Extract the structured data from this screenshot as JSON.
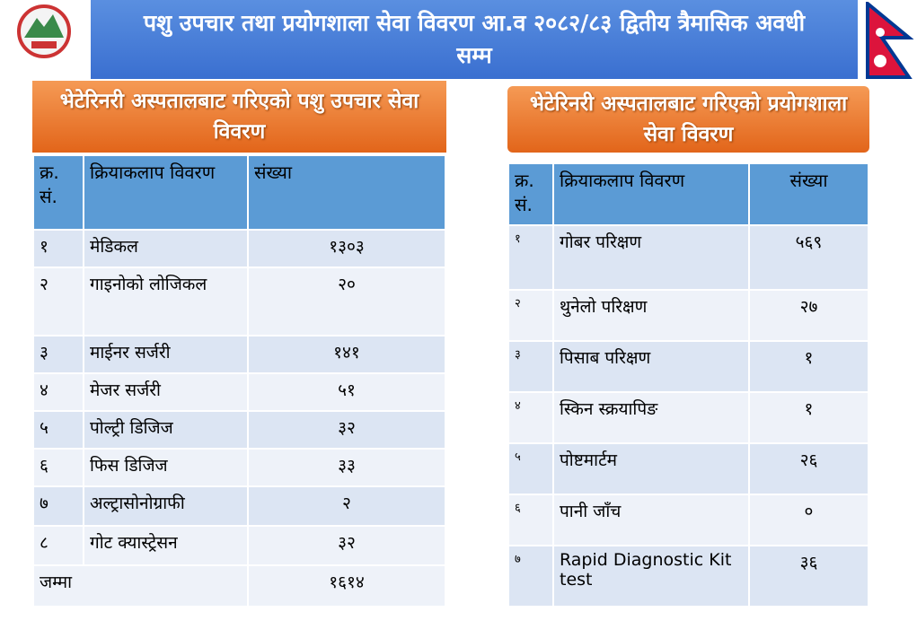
{
  "header": {
    "title": "पशु उपचार तथा प्रयोगशाला सेवा विवरण आ.व २०८२/८३ द्वितीय त्रैमासिक अवधी सम्म"
  },
  "left": {
    "title": "भेटेरिनरी अस्पतालबाट गरिएको पशु उपचार सेवा विवरण",
    "table": {
      "headers": [
        "क्र. सं.",
        "क्रियाकलाप विवरण",
        "संख्या"
      ],
      "rows": [
        [
          "१",
          "मेडिकल",
          "१३०३"
        ],
        [
          "२",
          "गाइनोको लोजिकल",
          "२०"
        ],
        [
          "३",
          "माईनर सर्जरी",
          "१४१"
        ],
        [
          "४",
          "मेजर सर्जरी",
          "५१"
        ],
        [
          "५",
          "पोल्ट्री डिजिज",
          "३२"
        ],
        [
          "६",
          "फिस डिजिज",
          "३३"
        ],
        [
          "७",
          "अल्ट्रासोनोग्राफी",
          "२"
        ],
        [
          "८",
          "गोट क्यास्ट्रेसन",
          "३२"
        ]
      ],
      "total": [
        "जम्मा",
        "१६१४"
      ]
    }
  },
  "right": {
    "title": "भेटेरिनरी अस्पतालबाट गरिएको प्रयोगशाला सेवा विवरण",
    "table": {
      "headers": [
        "क्र. सं.",
        "क्रियाकलाप विवरण",
        "संख्या"
      ],
      "rows": [
        [
          "१",
          "गोबर परिक्षण",
          "५६९"
        ],
        [
          "२",
          "थुनेलो परिक्षण",
          "२७"
        ],
        [
          "३",
          "पिसाब परिक्षण",
          "१"
        ],
        [
          "४",
          "स्किन स्क्रयापिङ",
          "१"
        ],
        [
          "५",
          "पोष्टमार्टम",
          "२६"
        ],
        [
          "६",
          "पानी जाँच",
          "०"
        ],
        [
          "७",
          "Rapid Diagnostic Kit test",
          "३६"
        ]
      ]
    }
  }
}
